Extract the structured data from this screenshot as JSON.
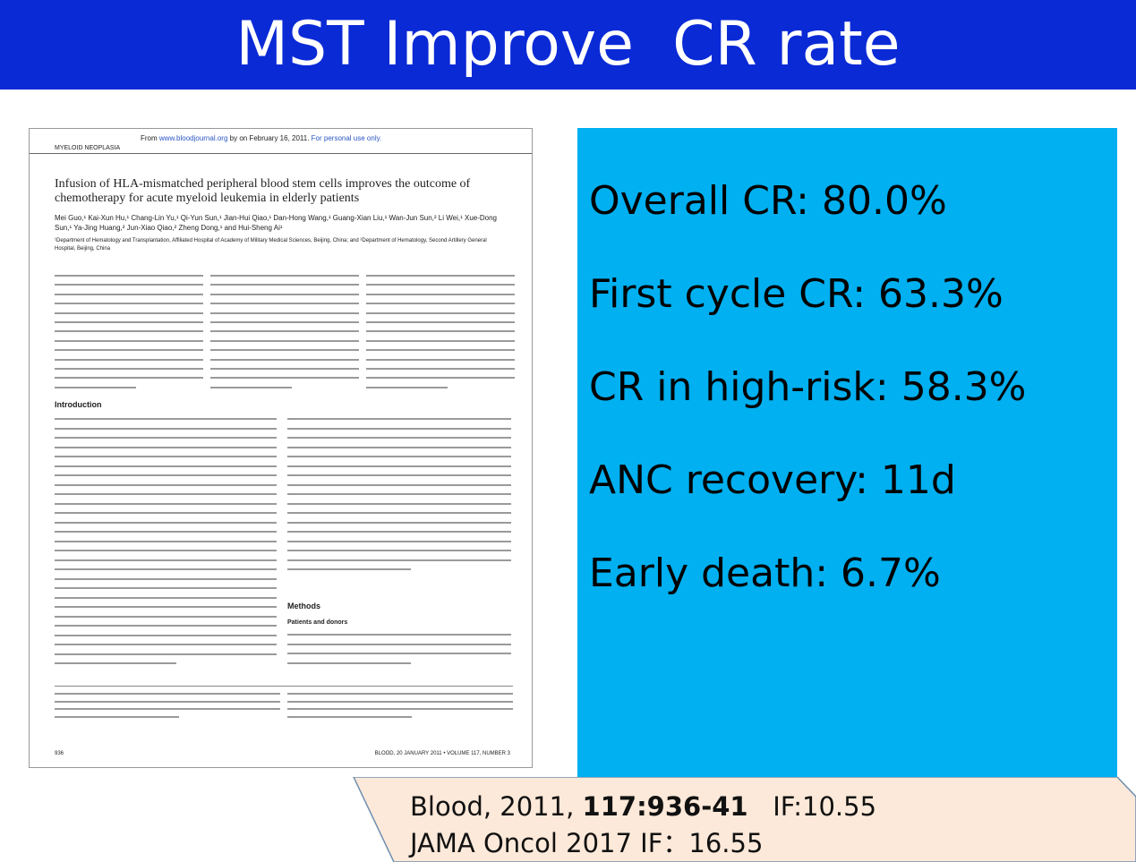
{
  "header": {
    "title": "MST Improve  CR rate"
  },
  "paper": {
    "source_line": {
      "prefix": "From",
      "site": "www.bloodjournal.org",
      "middle": "by on February 16, 2011.",
      "note": "For personal use only."
    },
    "section": "MYELOID NEOPLASIA",
    "title": "Infusion of HLA-mismatched peripheral blood stem cells improves the outcome of chemotherapy for acute myeloid leukemia in elderly patients",
    "authors": "Mei Guo,¹ Kai-Xun Hu,¹ Chang-Lin Yu,¹ Qi-Yun Sun,¹ Jian-Hui Qiao,¹ Dan-Hong Wang,¹ Guang-Xian Liu,¹ Wan-Jun Sun,² Li Wei,¹ Xue-Dong Sun,¹ Ya-Jing Huang,² Jun-Xiao Qiao,² Zheng Dong,¹ and Hui-Sheng Ai¹",
    "affiliations": "¹Department of Hematology and Transplantation, Affiliated Hospital of Academy of Military Medical Sciences, Beijing, China; and ²Department of Hematology, Second Artillery General Hospital, Beijing, China",
    "headings": {
      "introduction": "Introduction",
      "methods": "Methods",
      "patients": "Patients and donors"
    },
    "footer": {
      "page": "936",
      "journal": "BLOOD, 20 JANUARY 2011 • VOLUME 117, NUMBER 3"
    }
  },
  "results": [
    "Overall CR: 80.0%",
    "First cycle CR: 63.3%",
    "CR in high-risk: 58.3%",
    "ANC recovery: 11d",
    "Early death: 6.7%"
  ],
  "citation": {
    "line1": {
      "journal": "Blood, 2011,",
      "pages": "117:936-41",
      "impact": "IF:10.55"
    },
    "line2": "JAMA Oncol 2017 IF：16.55"
  }
}
